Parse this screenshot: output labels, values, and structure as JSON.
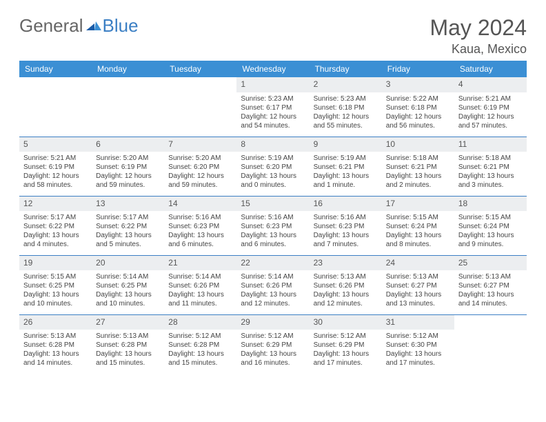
{
  "brand": {
    "word1": "General",
    "word2": "Blue"
  },
  "title": "May 2024",
  "location": "Kaua, Mexico",
  "colors": {
    "header_bg": "#3b8fd4",
    "header_text": "#ffffff",
    "daynum_bg": "#eceef0",
    "border": "#3b7fc4",
    "text": "#444444"
  },
  "daysOfWeek": [
    "Sunday",
    "Monday",
    "Tuesday",
    "Wednesday",
    "Thursday",
    "Friday",
    "Saturday"
  ],
  "firstWeekday": 3,
  "daysInMonth": 31,
  "cells": {
    "1": {
      "sunrise": "5:23 AM",
      "sunset": "6:17 PM",
      "daylight": "12 hours and 54 minutes."
    },
    "2": {
      "sunrise": "5:23 AM",
      "sunset": "6:18 PM",
      "daylight": "12 hours and 55 minutes."
    },
    "3": {
      "sunrise": "5:22 AM",
      "sunset": "6:18 PM",
      "daylight": "12 hours and 56 minutes."
    },
    "4": {
      "sunrise": "5:21 AM",
      "sunset": "6:19 PM",
      "daylight": "12 hours and 57 minutes."
    },
    "5": {
      "sunrise": "5:21 AM",
      "sunset": "6:19 PM",
      "daylight": "12 hours and 58 minutes."
    },
    "6": {
      "sunrise": "5:20 AM",
      "sunset": "6:19 PM",
      "daylight": "12 hours and 59 minutes."
    },
    "7": {
      "sunrise": "5:20 AM",
      "sunset": "6:20 PM",
      "daylight": "12 hours and 59 minutes."
    },
    "8": {
      "sunrise": "5:19 AM",
      "sunset": "6:20 PM",
      "daylight": "13 hours and 0 minutes."
    },
    "9": {
      "sunrise": "5:19 AM",
      "sunset": "6:21 PM",
      "daylight": "13 hours and 1 minute."
    },
    "10": {
      "sunrise": "5:18 AM",
      "sunset": "6:21 PM",
      "daylight": "13 hours and 2 minutes."
    },
    "11": {
      "sunrise": "5:18 AM",
      "sunset": "6:21 PM",
      "daylight": "13 hours and 3 minutes."
    },
    "12": {
      "sunrise": "5:17 AM",
      "sunset": "6:22 PM",
      "daylight": "13 hours and 4 minutes."
    },
    "13": {
      "sunrise": "5:17 AM",
      "sunset": "6:22 PM",
      "daylight": "13 hours and 5 minutes."
    },
    "14": {
      "sunrise": "5:16 AM",
      "sunset": "6:23 PM",
      "daylight": "13 hours and 6 minutes."
    },
    "15": {
      "sunrise": "5:16 AM",
      "sunset": "6:23 PM",
      "daylight": "13 hours and 6 minutes."
    },
    "16": {
      "sunrise": "5:16 AM",
      "sunset": "6:23 PM",
      "daylight": "13 hours and 7 minutes."
    },
    "17": {
      "sunrise": "5:15 AM",
      "sunset": "6:24 PM",
      "daylight": "13 hours and 8 minutes."
    },
    "18": {
      "sunrise": "5:15 AM",
      "sunset": "6:24 PM",
      "daylight": "13 hours and 9 minutes."
    },
    "19": {
      "sunrise": "5:15 AM",
      "sunset": "6:25 PM",
      "daylight": "13 hours and 10 minutes."
    },
    "20": {
      "sunrise": "5:14 AM",
      "sunset": "6:25 PM",
      "daylight": "13 hours and 10 minutes."
    },
    "21": {
      "sunrise": "5:14 AM",
      "sunset": "6:26 PM",
      "daylight": "13 hours and 11 minutes."
    },
    "22": {
      "sunrise": "5:14 AM",
      "sunset": "6:26 PM",
      "daylight": "13 hours and 12 minutes."
    },
    "23": {
      "sunrise": "5:13 AM",
      "sunset": "6:26 PM",
      "daylight": "13 hours and 12 minutes."
    },
    "24": {
      "sunrise": "5:13 AM",
      "sunset": "6:27 PM",
      "daylight": "13 hours and 13 minutes."
    },
    "25": {
      "sunrise": "5:13 AM",
      "sunset": "6:27 PM",
      "daylight": "13 hours and 14 minutes."
    },
    "26": {
      "sunrise": "5:13 AM",
      "sunset": "6:28 PM",
      "daylight": "13 hours and 14 minutes."
    },
    "27": {
      "sunrise": "5:13 AM",
      "sunset": "6:28 PM",
      "daylight": "13 hours and 15 minutes."
    },
    "28": {
      "sunrise": "5:12 AM",
      "sunset": "6:28 PM",
      "daylight": "13 hours and 15 minutes."
    },
    "29": {
      "sunrise": "5:12 AM",
      "sunset": "6:29 PM",
      "daylight": "13 hours and 16 minutes."
    },
    "30": {
      "sunrise": "5:12 AM",
      "sunset": "6:29 PM",
      "daylight": "13 hours and 17 minutes."
    },
    "31": {
      "sunrise": "5:12 AM",
      "sunset": "6:30 PM",
      "daylight": "13 hours and 17 minutes."
    }
  },
  "labels": {
    "sunrise": "Sunrise: ",
    "sunset": "Sunset: ",
    "daylight": "Daylight: "
  }
}
